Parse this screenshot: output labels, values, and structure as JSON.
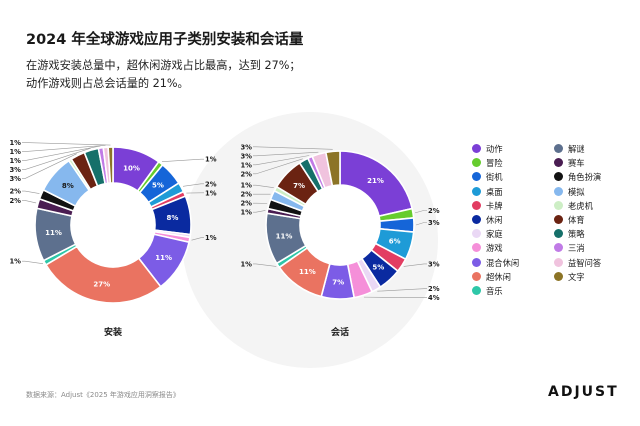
{
  "title": "2024 年全球游戏应用子类别安装和会话量",
  "subtitle_lines": [
    "在游戏安装总量中，超休闲游戏占比最高，达到 27%；",
    "动作游戏则占总会话量的 21%。"
  ],
  "source": "数据来源：Adjust《2025 年游戏应用洞察报告》",
  "brand": "ADJUST",
  "chart_data": [
    {
      "type": "pie",
      "caption": "安装",
      "donut": true,
      "categories": [
        "动作",
        "冒险",
        "街机",
        "桌面",
        "卡牌",
        "休闲",
        "家庭",
        "游戏",
        "混合休闲",
        "超休闲",
        "音乐",
        "解谜",
        "赛车",
        "角色扮演",
        "模拟",
        "老虎机",
        "体育",
        "策略",
        "三消",
        "益智问答",
        "文字"
      ],
      "values": [
        10,
        1,
        5,
        2,
        1,
        8,
        0.6,
        1,
        11,
        27,
        1,
        11,
        2,
        2,
        8,
        0.6,
        3,
        3,
        1,
        1,
        1
      ],
      "labels": [
        "10%",
        "1%",
        "5%",
        "2%",
        "1%",
        "8%",
        "",
        "1%",
        "11%",
        "27%",
        "1%",
        "11%",
        "2%",
        "2%",
        "8%",
        "",
        "3%",
        "3%",
        "1%",
        "1%",
        "1%"
      ]
    },
    {
      "type": "pie",
      "caption": "会话",
      "donut": true,
      "categories": [
        "动作",
        "冒险",
        "街机",
        "桌面",
        "卡牌",
        "休闲",
        "家庭",
        "游戏",
        "混合休闲",
        "超休闲",
        "音乐",
        "解谜",
        "赛车",
        "角色扮演",
        "模拟",
        "老虎机",
        "体育",
        "策略",
        "三消",
        "益智问答",
        "文字"
      ],
      "values": [
        21,
        2,
        3,
        6,
        3,
        5,
        2,
        4,
        7,
        11,
        1,
        11,
        1,
        2,
        2,
        1,
        7,
        2,
        1,
        3,
        3
      ],
      "labels": [
        "21%",
        "2%",
        "3%",
        "6%",
        "3%",
        "5%",
        "2%",
        "4%",
        "7%",
        "11%",
        "1%",
        "11%",
        "1%",
        "2%",
        "2%",
        "1%",
        "7%",
        "2%",
        "1%",
        "3%",
        "3%"
      ]
    }
  ],
  "legend": [
    {
      "label": "动作",
      "color": "#7b3fd6"
    },
    {
      "label": "冒险",
      "color": "#66cc2e"
    },
    {
      "label": "街机",
      "color": "#1565d8"
    },
    {
      "label": "桌面",
      "color": "#1e9bd7"
    },
    {
      "label": "卡牌",
      "color": "#e23d62"
    },
    {
      "label": "休闲",
      "color": "#0a2aa0"
    },
    {
      "label": "家庭",
      "color": "#ead8f5"
    },
    {
      "label": "游戏",
      "color": "#f58fd9"
    },
    {
      "label": "混合休闲",
      "color": "#7c5ce6"
    },
    {
      "label": "超休闲",
      "color": "#ea7361"
    },
    {
      "label": "音乐",
      "color": "#2ec7a8"
    },
    {
      "label": "解谜",
      "color": "#5d708e"
    },
    {
      "label": "赛车",
      "color": "#4a1d52"
    },
    {
      "label": "角色扮演",
      "color": "#121212"
    },
    {
      "label": "模拟",
      "color": "#86b8ee"
    },
    {
      "label": "老虎机",
      "color": "#cdeec5"
    },
    {
      "label": "体育",
      "color": "#6b2312"
    },
    {
      "label": "策略",
      "color": "#16706a"
    },
    {
      "label": "三消",
      "color": "#c07be6"
    },
    {
      "label": "益智问答",
      "color": "#f0c3de"
    },
    {
      "label": "文字",
      "color": "#8c7426"
    }
  ]
}
